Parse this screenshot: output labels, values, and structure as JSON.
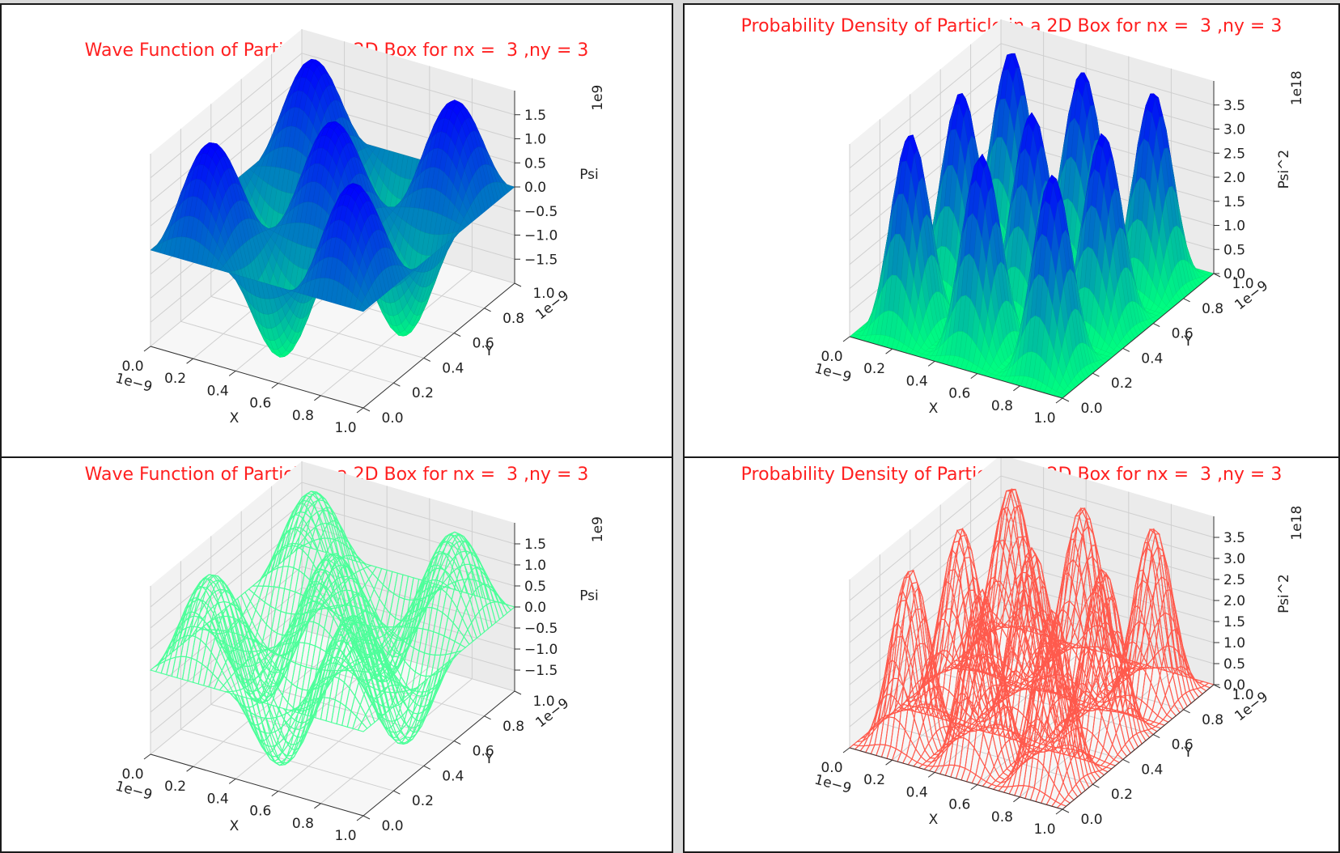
{
  "chart_data": [
    {
      "type": "surface",
      "title": "Wave Function of Particle in a 2D Box for nx =  3 ,ny = 3",
      "xlabel": "X",
      "ylabel": "Y",
      "zlabel": "Psi",
      "x_offset": "1e−9",
      "y_offset": "1e−9",
      "z_offset": "1e9",
      "quantum_numbers": {
        "nx": 3,
        "ny": 3
      },
      "xlim": [
        0,
        1e-09
      ],
      "ylim": [
        0,
        1e-09
      ],
      "zlim": [
        -2000000000.0,
        2000000000.0
      ],
      "x_ticks": [
        "0.0",
        "0.2",
        "0.4",
        "0.6",
        "0.8",
        "1.0"
      ],
      "y_ticks": [
        "0.0",
        "0.2",
        "0.4",
        "0.6",
        "0.8",
        "1.0"
      ],
      "z_ticks": [
        "−1.5",
        "−1.0",
        "−0.5",
        "0.0",
        "0.5",
        "1.0",
        "1.5"
      ],
      "z_tick_values": [
        -1.5,
        -1.0,
        -0.5,
        0.0,
        0.5,
        1.0,
        1.5
      ],
      "style": "filled",
      "colormap": "winter",
      "peak": 2000000000.0
    },
    {
      "type": "surface",
      "title": "Probability Density of Particle in a 2D Box for nx =  3 ,ny = 3",
      "xlabel": "X",
      "ylabel": "Y",
      "zlabel": "Psi^2",
      "x_offset": "1e−9",
      "y_offset": "1e−9",
      "z_offset": "1e18",
      "quantum_numbers": {
        "nx": 3,
        "ny": 3
      },
      "xlim": [
        0,
        1e-09
      ],
      "ylim": [
        0,
        1e-09
      ],
      "zlim": [
        0,
        4e+18
      ],
      "x_ticks": [
        "0.0",
        "0.2",
        "0.4",
        "0.6",
        "0.8",
        "1.0"
      ],
      "y_ticks": [
        "0.0",
        "0.2",
        "0.4",
        "0.6",
        "0.8",
        "1.0"
      ],
      "z_ticks": [
        "0.0",
        "0.5",
        "1.0",
        "1.5",
        "2.0",
        "2.5",
        "3.0",
        "3.5"
      ],
      "z_tick_values": [
        0.0,
        0.5,
        1.0,
        1.5,
        2.0,
        2.5,
        3.0,
        3.5
      ],
      "style": "filled",
      "colormap": "winter_r",
      "peak": 4e+18
    },
    {
      "type": "surface",
      "title": "Wave Function of Particle in a 2D Box for nx =  3 ,ny = 3",
      "xlabel": "X",
      "ylabel": "Y",
      "zlabel": "Psi",
      "x_offset": "1e−9",
      "y_offset": "1e−9",
      "z_offset": "1e9",
      "quantum_numbers": {
        "nx": 3,
        "ny": 3
      },
      "xlim": [
        0,
        1e-09
      ],
      "ylim": [
        0,
        1e-09
      ],
      "zlim": [
        -2000000000.0,
        2000000000.0
      ],
      "x_ticks": [
        "0.0",
        "0.2",
        "0.4",
        "0.6",
        "0.8",
        "1.0"
      ],
      "y_ticks": [
        "0.0",
        "0.2",
        "0.4",
        "0.6",
        "0.8",
        "1.0"
      ],
      "z_ticks": [
        "−1.5",
        "−1.0",
        "−0.5",
        "0.0",
        "0.5",
        "1.0",
        "1.5"
      ],
      "z_tick_values": [
        -1.5,
        -1.0,
        -0.5,
        0.0,
        0.5,
        1.0,
        1.5
      ],
      "style": "wireframe",
      "color": "#4dff9a",
      "peak": 2000000000.0
    },
    {
      "type": "surface",
      "title": "Probability Density of Particle in a 2D Box for nx =  3 ,ny = 3",
      "xlabel": "X",
      "ylabel": "Y",
      "zlabel": "Psi^2",
      "x_offset": "1e−9",
      "y_offset": "1e−9",
      "z_offset": "1e18",
      "quantum_numbers": {
        "nx": 3,
        "ny": 3
      },
      "xlim": [
        0,
        1e-09
      ],
      "ylim": [
        0,
        1e-09
      ],
      "zlim": [
        0,
        4e+18
      ],
      "x_ticks": [
        "0.0",
        "0.2",
        "0.4",
        "0.6",
        "0.8",
        "1.0"
      ],
      "y_ticks": [
        "0.0",
        "0.2",
        "0.4",
        "0.6",
        "0.8",
        "1.0"
      ],
      "z_ticks": [
        "0.0",
        "0.5",
        "1.0",
        "1.5",
        "2.0",
        "2.5",
        "3.0",
        "3.5"
      ],
      "z_tick_values": [
        0.0,
        0.5,
        1.0,
        1.5,
        2.0,
        2.5,
        3.0,
        3.5
      ],
      "style": "wireframe",
      "color": "#ff5a4d",
      "peak": 4e+18
    }
  ]
}
